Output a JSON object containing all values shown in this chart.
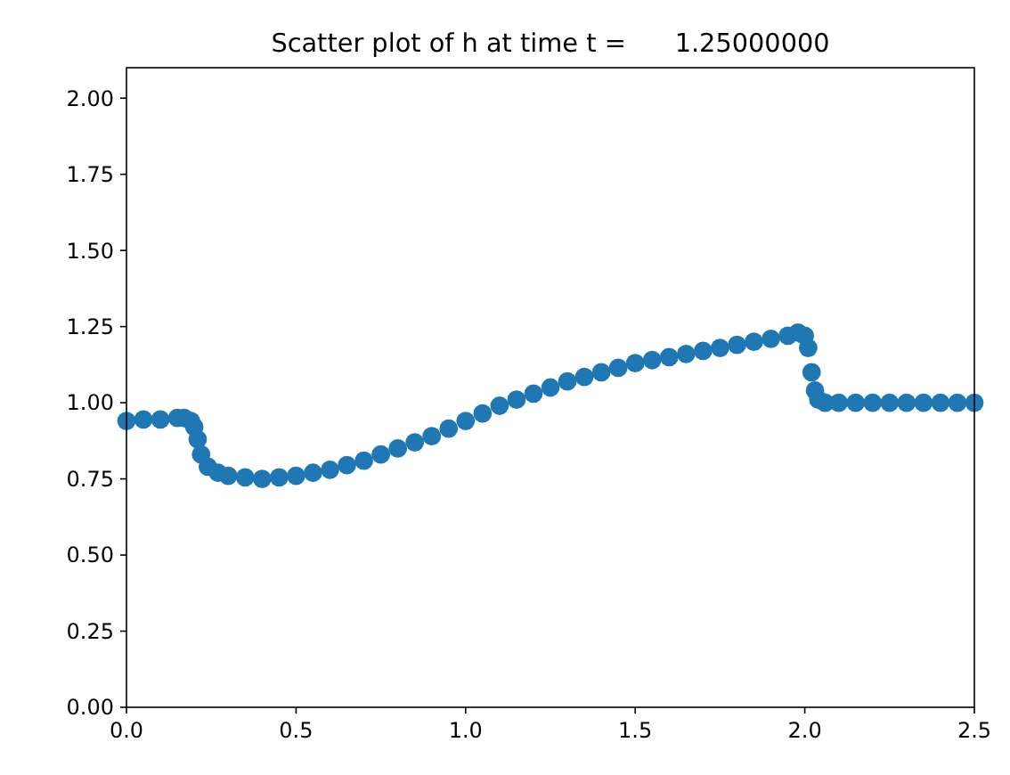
{
  "chart_data": {
    "type": "scatter",
    "title": "Scatter plot of h at time t =      1.25000000",
    "xlim": [
      0,
      2.5
    ],
    "ylim": [
      0,
      2.1
    ],
    "xticks": [
      {
        "value": 0,
        "label": "0.0"
      },
      {
        "value": 0.5,
        "label": "0.5"
      },
      {
        "value": 1,
        "label": "1.0"
      },
      {
        "value": 1.5,
        "label": "1.5"
      },
      {
        "value": 2,
        "label": "2.0"
      },
      {
        "value": 2.5,
        "label": "2.5"
      }
    ],
    "yticks": [
      {
        "value": 0,
        "label": "0.00"
      },
      {
        "value": 0.25,
        "label": "0.25"
      },
      {
        "value": 0.5,
        "label": "0.50"
      },
      {
        "value": 0.75,
        "label": "0.75"
      },
      {
        "value": 1,
        "label": "1.00"
      },
      {
        "value": 1.25,
        "label": "1.25"
      },
      {
        "value": 1.5,
        "label": "1.50"
      },
      {
        "value": 1.75,
        "label": "1.75"
      },
      {
        "value": 2,
        "label": "2.00"
      }
    ],
    "marker": "circle",
    "grid": false,
    "series": [
      {
        "color": "#1f77b4",
        "x": [
          0,
          0.05,
          0.1,
          0.15,
          0.17,
          0.19,
          0.2,
          0.21,
          0.22,
          0.24,
          0.27,
          0.3,
          0.35,
          0.4,
          0.45,
          0.5,
          0.55,
          0.6,
          0.65,
          0.7,
          0.75,
          0.8,
          0.85,
          0.9,
          0.95,
          1.0,
          1.05,
          1.1,
          1.15,
          1.2,
          1.25,
          1.3,
          1.35,
          1.4,
          1.45,
          1.5,
          1.55,
          1.6,
          1.65,
          1.7,
          1.75,
          1.8,
          1.85,
          1.9,
          1.95,
          1.98,
          2.0,
          2.01,
          2.02,
          2.03,
          2.04,
          2.06,
          2.1,
          2.15,
          2.2,
          2.25,
          2.3,
          2.35,
          2.4,
          2.45,
          2.5
        ],
        "values": [
          0.94,
          0.945,
          0.945,
          0.95,
          0.95,
          0.94,
          0.92,
          0.88,
          0.83,
          0.79,
          0.77,
          0.76,
          0.755,
          0.75,
          0.755,
          0.76,
          0.77,
          0.78,
          0.795,
          0.81,
          0.83,
          0.85,
          0.87,
          0.89,
          0.915,
          0.94,
          0.965,
          0.99,
          1.01,
          1.03,
          1.05,
          1.07,
          1.085,
          1.1,
          1.115,
          1.13,
          1.14,
          1.15,
          1.16,
          1.17,
          1.18,
          1.19,
          1.2,
          1.21,
          1.22,
          1.23,
          1.22,
          1.18,
          1.1,
          1.04,
          1.01,
          1.0,
          1.0,
          1.0,
          1.0,
          1.0,
          1.0,
          1.0,
          1.0,
          1.0,
          1.0
        ]
      }
    ]
  }
}
